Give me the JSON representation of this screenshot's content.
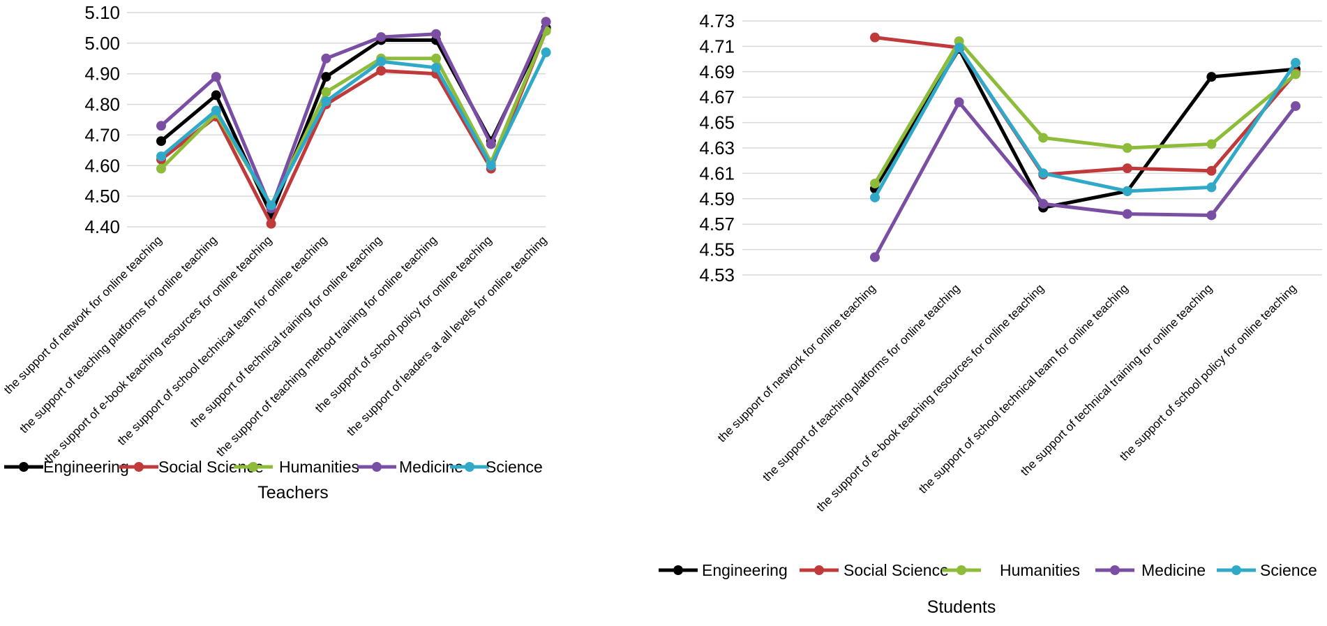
{
  "series_colors": {
    "Engineering": "#000000",
    "Social Science": "#c0393b",
    "Humanities": "#8dbb3a",
    "Medicine": "#7a4fa3",
    "Science": "#30a9c9"
  },
  "chart_data": [
    {
      "type": "line",
      "title": "Teachers",
      "xlabel": "",
      "ylabel": "",
      "ylim": [
        4.4,
        5.1
      ],
      "ytick_labels": [
        "4.40",
        "4.50",
        "4.60",
        "4.70",
        "4.80",
        "4.90",
        "5.00",
        "5.10"
      ],
      "grid": true,
      "legend": "bottom",
      "categories": [
        "the support of network for online teaching",
        "the support of teaching platforms for online teaching",
        "the support of e-book teaching resources for online teaching",
        "the support of school technical team for online teaching",
        "the support of technical training for online teaching",
        "the support of teaching method training for online teaching",
        "the support of school policy for online teaching",
        "the support of leaders at all levels for online teaching"
      ],
      "series": [
        {
          "name": "Engineering",
          "values": [
            4.68,
            4.83,
            4.44,
            4.89,
            5.01,
            5.01,
            4.68,
            5.05
          ]
        },
        {
          "name": "Social Science",
          "values": [
            4.62,
            4.76,
            4.41,
            4.8,
            4.91,
            4.9,
            4.59,
            5.04
          ]
        },
        {
          "name": "Humanities",
          "values": [
            4.59,
            4.77,
            4.47,
            4.84,
            4.95,
            4.95,
            4.61,
            5.04
          ]
        },
        {
          "name": "Medicine",
          "values": [
            4.73,
            4.89,
            4.46,
            4.95,
            5.02,
            5.03,
            4.67,
            5.07
          ]
        },
        {
          "name": "Science",
          "values": [
            4.63,
            4.78,
            4.47,
            4.81,
            4.94,
            4.92,
            4.6,
            4.97
          ]
        }
      ]
    },
    {
      "type": "line",
      "title": "Students",
      "xlabel": "",
      "ylabel": "",
      "ylim": [
        4.53,
        4.73
      ],
      "ytick_labels": [
        "4.53",
        "4.55",
        "4.57",
        "4.59",
        "4.61",
        "4.63",
        "4.65",
        "4.67",
        "4.69",
        "4.71",
        "4.73"
      ],
      "grid": true,
      "legend": "bottom",
      "categories": [
        "the support of network for online teaching",
        "the support of teaching platforms for online teaching",
        "the support of e-book teaching resources for online teaching",
        "the support of school technical team for online teaching",
        "the support of technical training for online teaching",
        "the support of school policy for online teaching"
      ],
      "series": [
        {
          "name": "Engineering",
          "values": [
            4.598,
            4.708,
            4.583,
            4.596,
            4.686,
            4.692
          ]
        },
        {
          "name": "Social Science",
          "values": [
            4.717,
            4.709,
            4.609,
            4.614,
            4.612,
            4.689
          ]
        },
        {
          "name": "Humanities",
          "values": [
            4.602,
            4.714,
            4.638,
            4.63,
            4.633,
            4.688
          ]
        },
        {
          "name": "Medicine",
          "values": [
            4.544,
            4.666,
            4.586,
            4.578,
            4.577,
            4.663
          ]
        },
        {
          "name": "Science",
          "values": [
            4.591,
            4.709,
            4.61,
            4.596,
            4.599,
            4.697
          ]
        }
      ]
    }
  ]
}
